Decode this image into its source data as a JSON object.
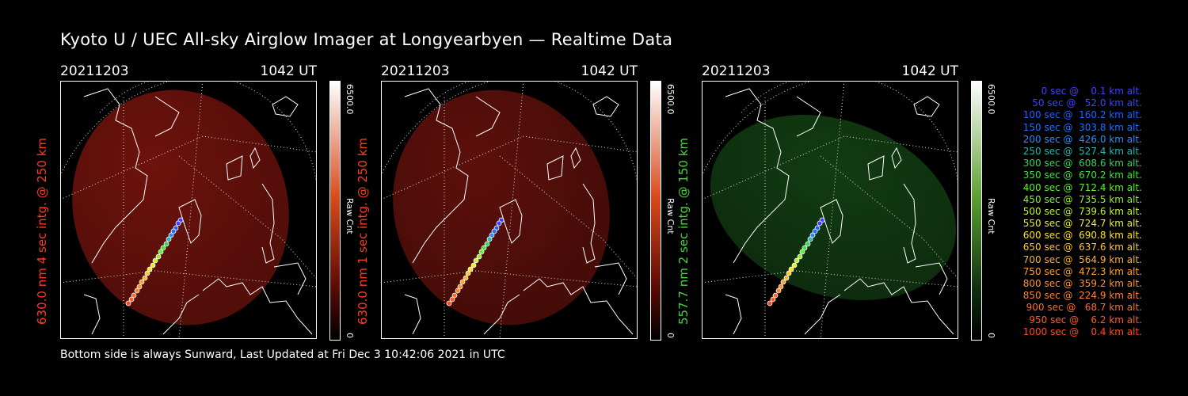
{
  "title": "Kyoto U / UEC All-sky Airglow Imager at Longyearbyen — Realtime Data",
  "panels": [
    {
      "date": "20211203",
      "time": "1042 UT",
      "ylabel": "630.0 nm 4 sec intg. @ 250 km",
      "cmax": "6500.0",
      "cmin": "0",
      "cunit": "Raw Cnt",
      "color": "#ff3b1f",
      "glow": "#6e120c",
      "barTop": "#ffffff",
      "barMid": "#d84a1b",
      "barLow": "#5a0a05"
    },
    {
      "date": "20211203",
      "time": "1042 UT",
      "ylabel": "630.0 nm 1 sec intg. @ 250 km",
      "cmax": "6500.0",
      "cmin": "0",
      "cunit": "Raw Cnt",
      "color": "#ff3b1f",
      "glow": "#5d100b",
      "barTop": "#ffffff",
      "barMid": "#d84a1b",
      "barLow": "#5a0a05"
    },
    {
      "date": "20211203",
      "time": "1042 UT",
      "ylabel": "557.7 nm 2 sec intg. @ 150 km",
      "cmax": "6500.0",
      "cmin": "0",
      "cunit": "Raw Cnt",
      "color": "#47d33a",
      "glow": "#123c12",
      "barTop": "#ffffff",
      "barMid": "#5aa031",
      "barLow": "#0e3010"
    }
  ],
  "legend": [
    {
      "text": "   0 sec @    0.1 km alt.",
      "color": "#4040ff"
    },
    {
      "text": "  50 sec @   52.0 km alt.",
      "color": "#4040ff"
    },
    {
      "text": " 100 sec @  160.2 km alt.",
      "color": "#2060ff"
    },
    {
      "text": " 150 sec @  303.8 km alt.",
      "color": "#2070ff"
    },
    {
      "text": " 200 sec @  426.0 km alt.",
      "color": "#2c8cff"
    },
    {
      "text": " 250 sec @  527.4 km alt.",
      "color": "#2db3b0"
    },
    {
      "text": " 300 sec @  608.6 km alt.",
      "color": "#35d35b"
    },
    {
      "text": " 350 sec @  670.2 km alt.",
      "color": "#40e040"
    },
    {
      "text": " 400 sec @  712.4 km alt.",
      "color": "#60f030"
    },
    {
      "text": " 450 sec @  735.5 km alt.",
      "color": "#90f030"
    },
    {
      "text": " 500 sec @  739.6 km alt.",
      "color": "#c0f030"
    },
    {
      "text": " 550 sec @  724.7 km alt.",
      "color": "#e8f030"
    },
    {
      "text": " 600 sec @  690.8 km alt.",
      "color": "#ffe020"
    },
    {
      "text": " 650 sec @  637.6 km alt.",
      "color": "#ffc830"
    },
    {
      "text": " 700 sec @  564.9 km alt.",
      "color": "#ffb030"
    },
    {
      "text": " 750 sec @  472.3 km alt.",
      "color": "#ffa030"
    },
    {
      "text": " 800 sec @  359.2 km alt.",
      "color": "#ff9030"
    },
    {
      "text": " 850 sec @  224.9 km alt.",
      "color": "#ff8030"
    },
    {
      "text": " 900 sec @   68.7 km alt.",
      "color": "#ff6a2c"
    },
    {
      "text": " 950 sec @    6.2 km alt.",
      "color": "#ff5a2a"
    },
    {
      "text": "1000 sec @    0.4 km alt.",
      "color": "#ff4a25"
    }
  ],
  "footer": "Bottom side is always Sunward, Last Updated at Fri Dec  3 10:42:06 2021 in UTC"
}
